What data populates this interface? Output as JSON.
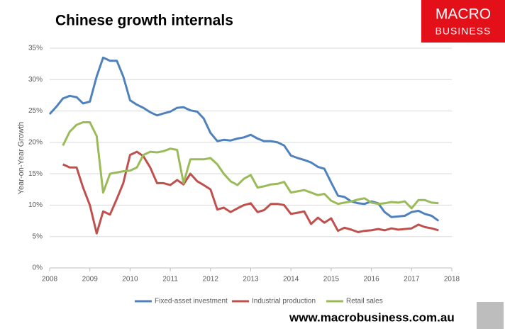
{
  "chart_data": {
    "type": "line",
    "title": "Chinese growth internals",
    "ylabel": "Year-on-Year Growth",
    "logo": [
      "MACRO",
      "BUSINESS"
    ],
    "footer": "www.macrobusiness.com.au",
    "grid": true,
    "legend": "bottom",
    "x": [
      2008,
      2008.17,
      2008.33,
      2008.5,
      2008.67,
      2008.83,
      2009,
      2009.17,
      2009.33,
      2009.5,
      2009.67,
      2009.83,
      2010,
      2010.17,
      2010.33,
      2010.5,
      2010.67,
      2010.83,
      2011,
      2011.17,
      2011.33,
      2011.5,
      2011.67,
      2011.83,
      2012,
      2012.17,
      2012.33,
      2012.5,
      2012.67,
      2012.83,
      2013,
      2013.17,
      2013.33,
      2013.5,
      2013.67,
      2013.83,
      2014,
      2014.17,
      2014.33,
      2014.5,
      2014.67,
      2014.83,
      2015,
      2015.17,
      2015.33,
      2015.5,
      2015.67,
      2015.83,
      2016,
      2016.17,
      2016.33,
      2016.5,
      2016.67,
      2016.83,
      2017,
      2017.17,
      2017.33,
      2017.5,
      2017.67
    ],
    "series": [
      {
        "name": "Fixed-asset investment",
        "color": "#4f81bd",
        "values": [
          24.5,
          25.7,
          27.0,
          27.4,
          27.2,
          26.2,
          26.5,
          30.5,
          33.5,
          33.0,
          33.0,
          30.5,
          26.7,
          26.0,
          25.5,
          24.8,
          24.3,
          24.6,
          24.9,
          25.5,
          25.6,
          25.1,
          24.9,
          23.8,
          21.5,
          20.2,
          20.4,
          20.3,
          20.6,
          20.8,
          21.2,
          20.6,
          20.2,
          20.2,
          20.0,
          19.5,
          17.9,
          17.5,
          17.2,
          16.8,
          16.1,
          15.8,
          13.6,
          11.5,
          11.3,
          10.6,
          10.3,
          10.2,
          10.6,
          10.3,
          8.9,
          8.1,
          8.2,
          8.3,
          8.9,
          9.1,
          8.6,
          8.3,
          7.5
        ]
      },
      {
        "name": "Industrial production",
        "color": "#c0504d",
        "values": [
          null,
          null,
          16.5,
          16.0,
          16.0,
          12.8,
          10.0,
          5.5,
          9.0,
          8.5,
          11.0,
          13.5,
          18.0,
          18.5,
          17.8,
          16.0,
          13.5,
          13.5,
          13.2,
          14.0,
          13.3,
          15.0,
          13.8,
          13.2,
          12.5,
          9.3,
          9.6,
          8.9,
          9.5,
          10.0,
          10.3,
          8.9,
          9.2,
          10.2,
          10.2,
          10.0,
          8.6,
          8.8,
          9.0,
          7.0,
          8.0,
          7.2,
          7.9,
          5.9,
          6.4,
          6.1,
          5.7,
          5.9,
          6.0,
          6.2,
          6.0,
          6.3,
          6.1,
          6.2,
          6.3,
          6.9,
          6.5,
          6.3,
          6.0
        ]
      },
      {
        "name": "Retail sales",
        "color": "#9bbb59",
        "values": [
          null,
          null,
          19.5,
          21.7,
          22.8,
          23.2,
          23.2,
          21.0,
          12.0,
          15.0,
          15.2,
          15.4,
          15.5,
          16.0,
          18.0,
          18.5,
          18.4,
          18.6,
          19.0,
          18.8,
          13.5,
          17.3,
          17.3,
          17.3,
          17.5,
          16.5,
          15.0,
          13.8,
          13.2,
          14.2,
          14.8,
          12.8,
          13.0,
          13.3,
          13.4,
          13.7,
          12.0,
          12.2,
          12.4,
          12.0,
          11.6,
          11.8,
          10.7,
          10.2,
          10.4,
          10.6,
          10.9,
          11.1,
          10.4,
          10.2,
          10.3,
          10.5,
          10.4,
          10.6,
          9.5,
          10.8,
          10.8,
          10.4,
          10.3
        ]
      }
    ],
    "xlim": [
      2008,
      2018
    ],
    "xticks": [
      2008,
      2009,
      2010,
      2011,
      2012,
      2013,
      2014,
      2015,
      2016,
      2017,
      2018
    ],
    "ylim": [
      0,
      35
    ],
    "yticks": [
      {
        "value": 0,
        "label": "0%"
      },
      {
        "value": 5,
        "label": "5%"
      },
      {
        "value": 10,
        "label": "10%"
      },
      {
        "value": 15,
        "label": "15%"
      },
      {
        "value": 20,
        "label": "20%"
      },
      {
        "value": 25,
        "label": "25%"
      },
      {
        "value": 30,
        "label": "30%"
      },
      {
        "value": 35,
        "label": "35%"
      }
    ]
  }
}
